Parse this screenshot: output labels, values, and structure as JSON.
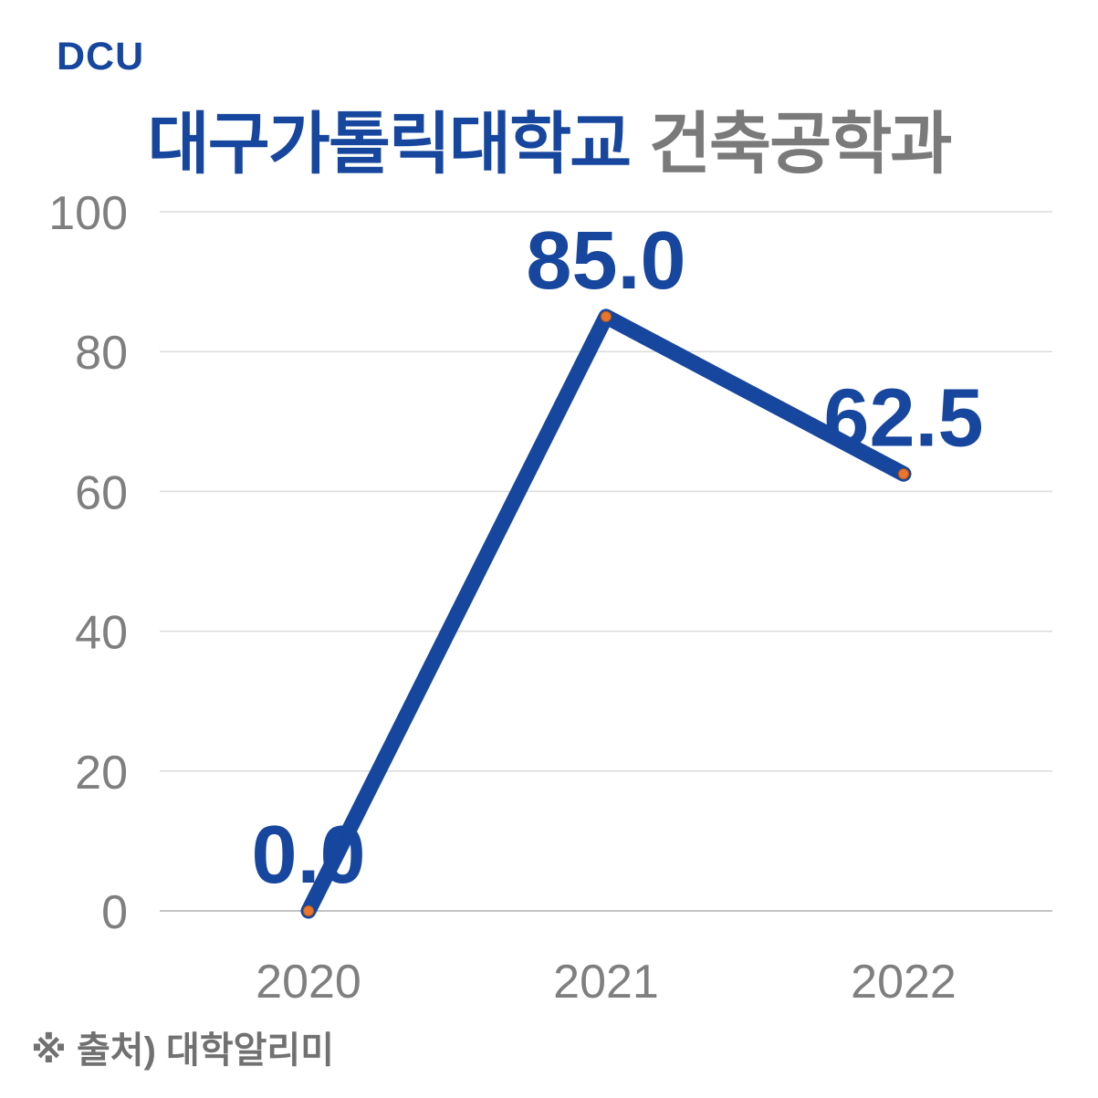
{
  "header": {
    "logo_text": "DCU",
    "title_university": "대구가톨릭대학교",
    "title_department": "건축공학과"
  },
  "chart_data": {
    "type": "line",
    "title": "대구가톨릭대학교 건축공학과",
    "categories": [
      "2020",
      "2021",
      "2022"
    ],
    "values": [
      0.0,
      85.0,
      62.5
    ],
    "data_labels": [
      "0.0",
      "85.0",
      "62.5"
    ],
    "yticks": [
      0,
      20,
      40,
      60,
      80,
      100
    ],
    "ylim": [
      0,
      100
    ],
    "grid": true,
    "legend": "none"
  },
  "footer": {
    "source_note": "※ 출처) 대학알리미"
  },
  "colors": {
    "accent_blue": "#17469E",
    "title_department_gray": "#7A7A7A",
    "axis_label_gray": "#7F7F7F",
    "gridline": "#DBDBDB",
    "baseline": "#C4C4C4",
    "marker_orange": "#E8762C",
    "marker_edge": "#C55A11",
    "source_gray": "#717171"
  }
}
